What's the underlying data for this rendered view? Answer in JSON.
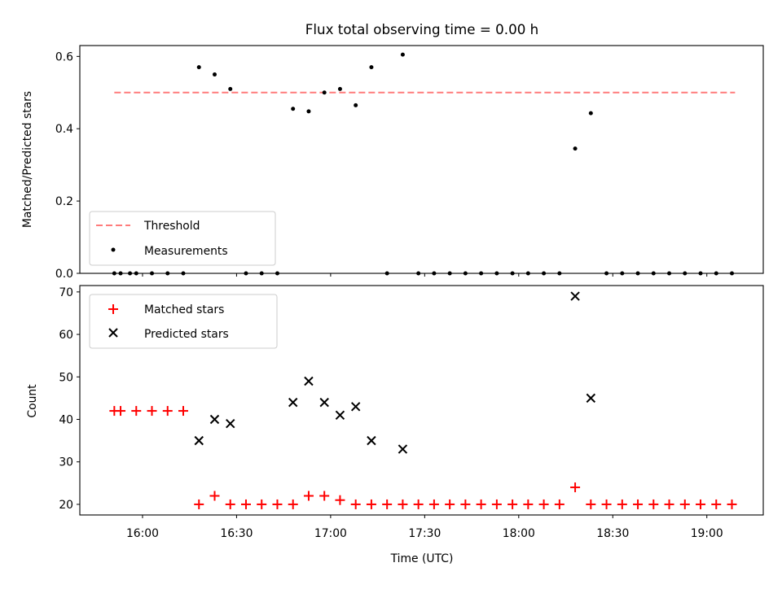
{
  "chart_data": [
    {
      "type": "scatter",
      "title": "Flux total observing time = 0.00 h",
      "xlabel": "",
      "ylabel": "Matched/Predicted stars",
      "ylim": [
        0,
        0.63
      ],
      "yticks": [
        "0.0",
        "0.2",
        "0.4",
        "0.6"
      ],
      "ytick_values": [
        0,
        0.2,
        0.4,
        0.6
      ],
      "legend": {
        "placement": "lower-left",
        "entries": [
          "Threshold",
          "Measurements"
        ]
      },
      "threshold": {
        "name": "Threshold",
        "value": 0.5,
        "x_start": "15:51",
        "x_end": "19:09",
        "color": "#ff7b7b"
      },
      "series": [
        {
          "name": "Measurements",
          "color": "#000000",
          "points": [
            [
              "15:51",
              0
            ],
            [
              "15:53",
              0
            ],
            [
              "15:56",
              0
            ],
            [
              "15:58",
              0
            ],
            [
              "16:03",
              0
            ],
            [
              "16:08",
              0
            ],
            [
              "16:13",
              0
            ],
            [
              "16:18",
              0.57
            ],
            [
              "16:23",
              0.55
            ],
            [
              "16:28",
              0.51
            ],
            [
              "16:33",
              0
            ],
            [
              "16:38",
              0
            ],
            [
              "16:43",
              0
            ],
            [
              "16:48",
              0.455
            ],
            [
              "16:53",
              0.448
            ],
            [
              "16:58",
              0.5
            ],
            [
              "17:03",
              0.51
            ],
            [
              "17:08",
              0.465
            ],
            [
              "17:13",
              0.57
            ],
            [
              "17:18",
              0
            ],
            [
              "17:23",
              0.605
            ],
            [
              "17:28",
              0
            ],
            [
              "17:33",
              0
            ],
            [
              "17:38",
              0
            ],
            [
              "17:43",
              0
            ],
            [
              "17:48",
              0
            ],
            [
              "17:53",
              0
            ],
            [
              "17:58",
              0
            ],
            [
              "18:03",
              0
            ],
            [
              "18:08",
              0
            ],
            [
              "18:13",
              0
            ],
            [
              "18:18",
              0.345
            ],
            [
              "18:23",
              0.443
            ],
            [
              "18:28",
              0
            ],
            [
              "18:33",
              0
            ],
            [
              "18:38",
              0
            ],
            [
              "18:43",
              0
            ],
            [
              "18:48",
              0
            ],
            [
              "18:53",
              0
            ],
            [
              "18:58",
              0
            ],
            [
              "19:03",
              0
            ],
            [
              "19:08",
              0
            ]
          ]
        }
      ]
    },
    {
      "type": "scatter",
      "title": "",
      "xlabel": "Time (UTC)",
      "ylabel": "Count",
      "ylim": [
        17.5,
        71.5
      ],
      "yticks": [
        "20",
        "30",
        "40",
        "50",
        "60",
        "70"
      ],
      "ytick_values": [
        20,
        30,
        40,
        50,
        60,
        70
      ],
      "xlim": [
        "15:40",
        "19:18"
      ],
      "xticks": [
        "16:00",
        "16:30",
        "17:00",
        "17:30",
        "18:00",
        "18:30",
        "19:00"
      ],
      "legend": {
        "placement": "upper-left",
        "entries": [
          "Matched stars",
          "Predicted stars"
        ]
      },
      "series": [
        {
          "name": "Matched stars",
          "marker": "plus",
          "color": "#ff0000",
          "points": [
            [
              "15:51",
              42
            ],
            [
              "15:53",
              42
            ],
            [
              "15:58",
              42
            ],
            [
              "16:03",
              42
            ],
            [
              "16:08",
              42
            ],
            [
              "16:13",
              42
            ],
            [
              "16:18",
              20
            ],
            [
              "16:23",
              22
            ],
            [
              "16:28",
              20
            ],
            [
              "16:33",
              20
            ],
            [
              "16:38",
              20
            ],
            [
              "16:43",
              20
            ],
            [
              "16:48",
              20
            ],
            [
              "16:53",
              22
            ],
            [
              "16:58",
              22
            ],
            [
              "17:03",
              21
            ],
            [
              "17:08",
              20
            ],
            [
              "17:13",
              20
            ],
            [
              "17:18",
              20
            ],
            [
              "17:23",
              20
            ],
            [
              "17:28",
              20
            ],
            [
              "17:33",
              20
            ],
            [
              "17:38",
              20
            ],
            [
              "17:43",
              20
            ],
            [
              "17:48",
              20
            ],
            [
              "17:53",
              20
            ],
            [
              "17:58",
              20
            ],
            [
              "18:03",
              20
            ],
            [
              "18:08",
              20
            ],
            [
              "18:13",
              20
            ],
            [
              "18:18",
              24
            ],
            [
              "18:23",
              20
            ],
            [
              "18:28",
              20
            ],
            [
              "18:33",
              20
            ],
            [
              "18:38",
              20
            ],
            [
              "18:43",
              20
            ],
            [
              "18:48",
              20
            ],
            [
              "18:53",
              20
            ],
            [
              "18:58",
              20
            ],
            [
              "19:03",
              20
            ],
            [
              "19:08",
              20
            ]
          ]
        },
        {
          "name": "Predicted stars",
          "marker": "x",
          "color": "#000000",
          "points": [
            [
              "16:18",
              35
            ],
            [
              "16:23",
              40
            ],
            [
              "16:28",
              39
            ],
            [
              "16:48",
              44
            ],
            [
              "16:53",
              49
            ],
            [
              "16:58",
              44
            ],
            [
              "17:03",
              41
            ],
            [
              "17:08",
              43
            ],
            [
              "17:13",
              35
            ],
            [
              "17:23",
              33
            ],
            [
              "18:18",
              69
            ],
            [
              "18:23",
              45
            ]
          ]
        }
      ]
    }
  ]
}
